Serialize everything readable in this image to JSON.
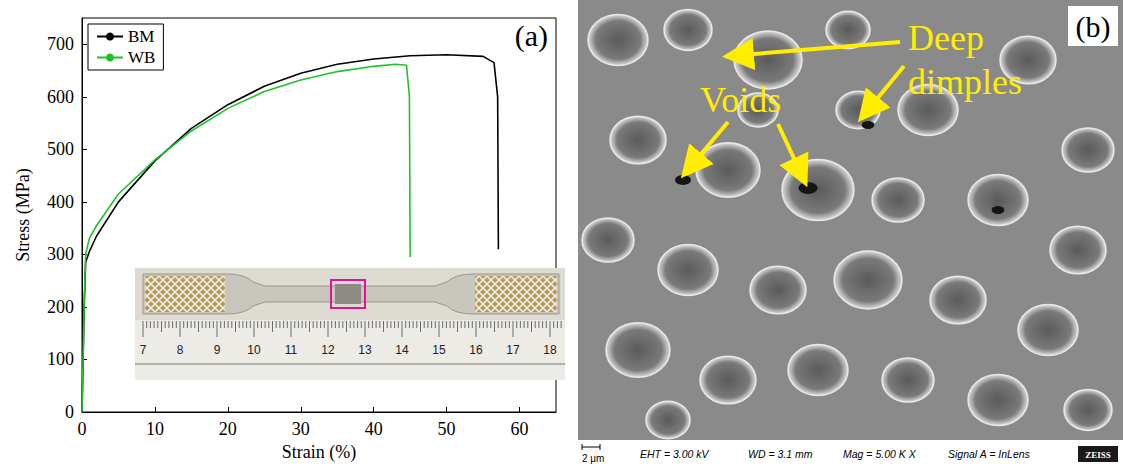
{
  "chart_data": {
    "type": "line",
    "label": "(a)",
    "x_label": "Strain (%)",
    "y_label": "Stress (MPa)",
    "xlim": [
      0,
      65
    ],
    "xticks": [
      0,
      10,
      20,
      30,
      40,
      50,
      60
    ],
    "ylim": [
      0,
      750
    ],
    "yticks": [
      0,
      100,
      200,
      300,
      400,
      500,
      600,
      700
    ],
    "grid": false,
    "legend": "upper left",
    "series": [
      {
        "name": "BM",
        "color": "#000000",
        "x": [
          0,
          0.3,
          0.5,
          1,
          2,
          5,
          10,
          15,
          20,
          25,
          30,
          35,
          40,
          45,
          50,
          55,
          56.5,
          57,
          57.1
        ],
        "values": [
          0,
          200,
          285,
          305,
          335,
          400,
          478,
          540,
          585,
          620,
          645,
          662,
          672,
          678,
          680,
          677,
          665,
          600,
          310
        ]
      },
      {
        "name": "WB",
        "color": "#22c02a",
        "x": [
          0,
          0.3,
          0.5,
          1,
          2,
          5,
          10,
          15,
          20,
          25,
          30,
          35,
          40,
          43,
          44.5,
          44.9,
          45
        ],
        "values": [
          0,
          210,
          300,
          330,
          355,
          415,
          480,
          535,
          578,
          610,
          632,
          648,
          658,
          662,
          660,
          600,
          295
        ]
      }
    ]
  },
  "inset": {
    "ruler_labels": [
      "7",
      "8",
      "9",
      "10",
      "11",
      "12",
      "13",
      "14",
      "15",
      "16",
      "17",
      "18"
    ]
  },
  "panel_b": {
    "label": "(b)",
    "annotations": [
      "Deep dimples",
      "Voids"
    ],
    "info": [
      "EHT = 3.00 kV",
      "WD = 3.1 mm",
      "Mag = 5.00 K X",
      "Signal A = InLens"
    ],
    "scale_bar": "2 μm",
    "brand": "ZEISS"
  }
}
